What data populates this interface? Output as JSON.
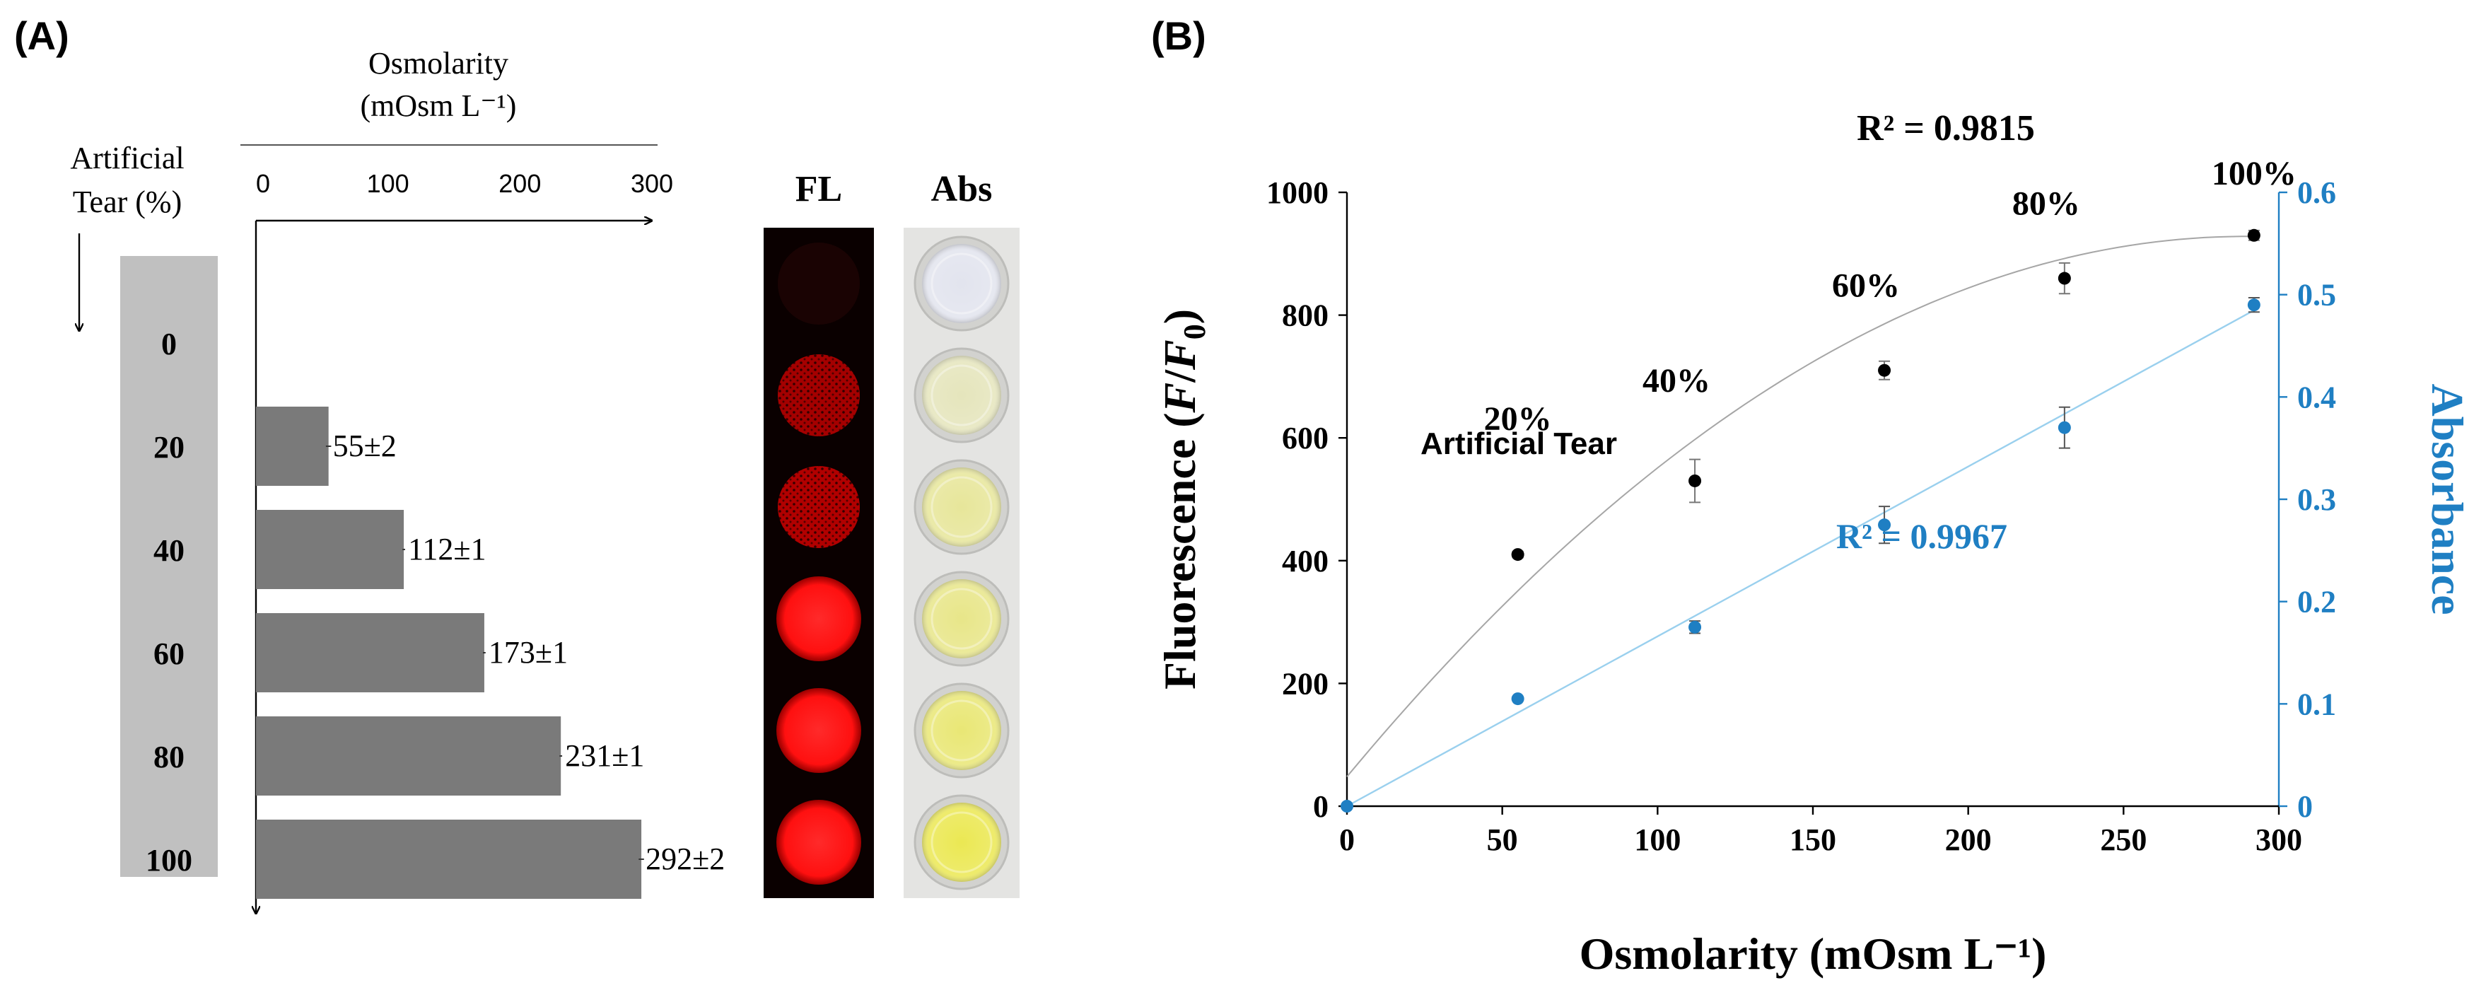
{
  "panels": {
    "a_label": "(A)",
    "b_label": "(B)"
  },
  "chart_data": [
    {
      "type": "bar",
      "orientation": "horizontal",
      "panel": "(A)",
      "title": "Osmolarity",
      "title_unit": "(mOsm L⁻¹)",
      "y_axis_title_line1": "Artificial",
      "y_axis_title_line2": "Tear (%)",
      "categories": [
        "0",
        "20",
        "40",
        "60",
        "80",
        "100"
      ],
      "values": [
        0,
        55,
        112,
        173,
        231,
        292
      ],
      "errors": [
        0,
        2,
        1,
        1,
        1,
        2
      ],
      "value_labels": [
        "",
        "55±2",
        "112±1",
        "173±1",
        "231±1",
        "292±2"
      ],
      "xlim": [
        0,
        300
      ],
      "xticks": [
        "0",
        "100",
        "200",
        "300"
      ],
      "image_columns": [
        "FL",
        "Abs"
      ],
      "colors": {
        "bar": "#7a7a7a",
        "category_band": "#c0c0c0",
        "fl_bg": "#0a0000",
        "fl_well": "#ff1010",
        "abs_bg": "#e4e4e2"
      },
      "fl_intensity": [
        0.03,
        0.62,
        0.78,
        1.0,
        1.0,
        1.0
      ],
      "abs_yellow": [
        0.0,
        0.3,
        0.5,
        0.6,
        0.72,
        0.92
      ]
    },
    {
      "type": "scatter",
      "panel": "(B)",
      "xlabel": "Osmolarity (mOsm L⁻¹)",
      "ylabel_left": "Fluorescence (F/F0)",
      "ylabel_right": "Absorbance",
      "xlim": [
        0,
        300
      ],
      "ylim_left": [
        0,
        1000
      ],
      "ylim_right": [
        0,
        0.6
      ],
      "xticks": [
        "0",
        "50",
        "100",
        "150",
        "200",
        "250",
        "300"
      ],
      "yticks_left": [
        "0",
        "200",
        "400",
        "600",
        "800",
        "1000"
      ],
      "yticks_right": [
        "0",
        "0.1",
        "0.2",
        "0.3",
        "0.4",
        "0.5",
        "0.6"
      ],
      "series": [
        {
          "name": "Fluorescence",
          "axis": "left",
          "color": "#000000",
          "x": [
            55,
            112,
            173,
            231,
            292
          ],
          "y": [
            410,
            530,
            710,
            860,
            930
          ],
          "err": [
            5,
            35,
            15,
            25,
            8
          ],
          "fit": "polynomial",
          "fit_coeffs": [
            48.1,
            6.08,
            -0.0105
          ],
          "fit_color": "#a6a6a6",
          "r2_label": "R² = 0.9815"
        },
        {
          "name": "Absorbance",
          "axis": "right",
          "color": "#1f7fc3",
          "x": [
            0,
            55,
            112,
            173,
            231,
            292
          ],
          "y": [
            0,
            0.105,
            0.175,
            0.275,
            0.37,
            0.49
          ],
          "err": [
            0,
            0,
            0.006,
            0.018,
            0.02,
            0.007
          ],
          "fit": "linear",
          "fit_coeffs": [
            0,
            0.00166
          ],
          "fit_color": "#9ad0ee",
          "r2_label": "R² = 0.9967"
        }
      ],
      "annotations": {
        "series_title": "Artificial Tear",
        "point_labels": [
          "20%",
          "40%",
          "60%",
          "80%",
          "100%"
        ]
      }
    }
  ]
}
